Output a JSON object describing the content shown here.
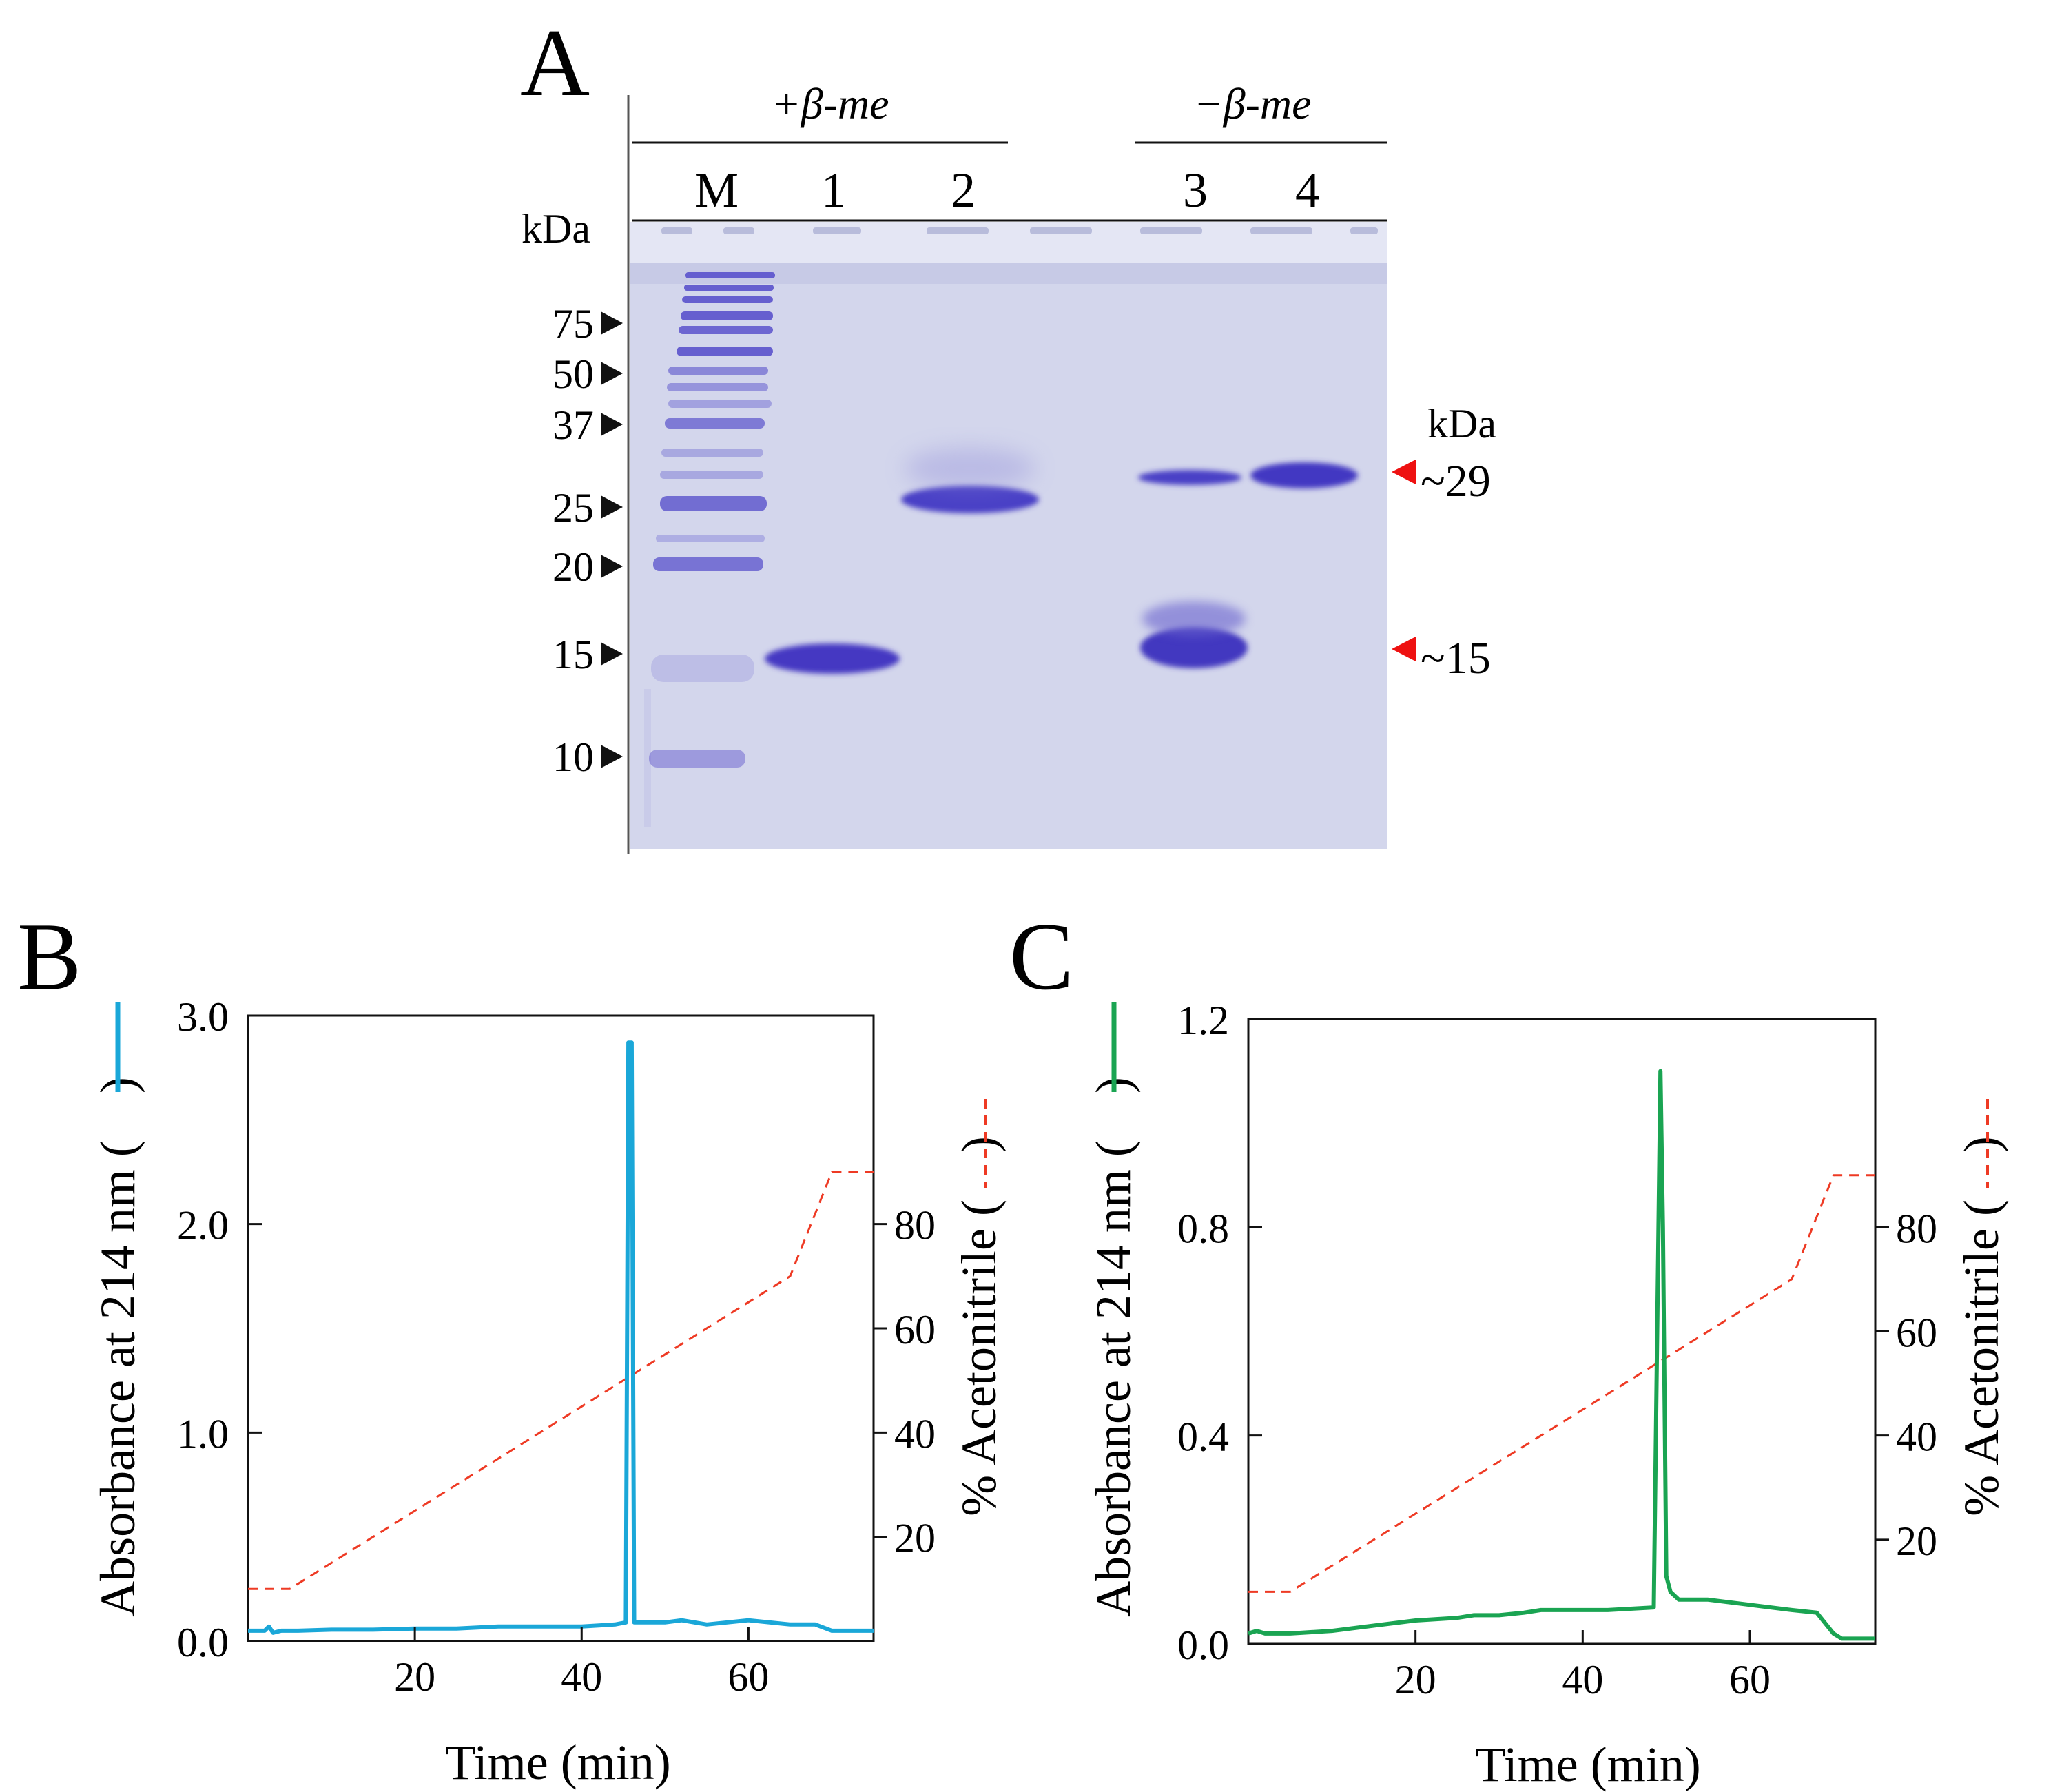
{
  "panel_a": {
    "letter": "A",
    "group_left_label": "+β-me",
    "group_right_label": "−β-me",
    "kda_left": "kDa",
    "kda_right": "kDa",
    "lane_labels": [
      "M",
      "1",
      "2",
      "3",
      "4"
    ],
    "marker_labels": [
      "75",
      "50",
      "37",
      "25",
      "20",
      "15",
      "10"
    ],
    "band_annotations": [
      "~29",
      "~15"
    ],
    "colors": {
      "gel": "#d2d5ec",
      "band": "#4a40c4",
      "arrow": "#ee1111",
      "marker_arrow": "#111111"
    }
  },
  "chart_data": [
    {
      "panel": "B",
      "type": "line",
      "xlabel": "Time (min)",
      "ylabel": "Absorbance at 214 nm (",
      "ylabel_close": ")",
      "y2label": "% Acetonitrile (",
      "y2label_close": ")",
      "xlim": [
        0,
        75
      ],
      "ylim": [
        0,
        3.0
      ],
      "y2lim": [
        0,
        120
      ],
      "xticks": [
        20,
        40,
        60
      ],
      "yticks": [
        "0.0",
        "1.0",
        "2.0",
        "3.0"
      ],
      "y2ticks": [
        20,
        40,
        60,
        80
      ],
      "series": [
        {
          "name": "Absorbance at 214 nm",
          "color": "#1aa7d8",
          "style": "solid",
          "x": [
            0,
            2,
            2.5,
            3,
            4,
            6,
            10,
            15,
            20,
            25,
            30,
            35,
            40,
            44,
            45.3,
            45.6,
            46.0,
            46.3,
            47,
            50,
            52,
            55,
            60,
            65,
            68,
            70,
            75
          ],
          "y": [
            0.05,
            0.05,
            0.07,
            0.04,
            0.05,
            0.05,
            0.055,
            0.055,
            0.06,
            0.06,
            0.07,
            0.07,
            0.07,
            0.08,
            0.09,
            2.87,
            2.87,
            0.09,
            0.09,
            0.09,
            0.1,
            0.08,
            0.1,
            0.08,
            0.08,
            0.05,
            0.05
          ]
        },
        {
          "name": "% Acetonitrile",
          "color": "#ee3a24",
          "style": "dashed",
          "axis": "y2",
          "x": [
            0,
            5,
            65,
            70,
            75
          ],
          "y": [
            10,
            10,
            70,
            90,
            90
          ]
        }
      ]
    },
    {
      "panel": "C",
      "type": "line",
      "xlabel": "Time (min)",
      "ylabel": "Absorbance at 214 nm (",
      "ylabel_close": ")",
      "y2label": "% Acetonitrile (",
      "y2label_close": ")",
      "xlim": [
        0,
        75
      ],
      "ylim": [
        0,
        1.2
      ],
      "y2lim": [
        0,
        120
      ],
      "xticks": [
        20,
        40,
        60
      ],
      "yticks": [
        "0.0",
        "0.4",
        "0.8",
        "1.2"
      ],
      "y2ticks": [
        20,
        40,
        60,
        80
      ],
      "series": [
        {
          "name": "Absorbance at 214 nm",
          "color": "#1aa452",
          "style": "solid",
          "x": [
            0,
            1,
            2,
            5,
            10,
            15,
            20,
            25,
            27,
            30,
            33,
            35,
            40,
            43,
            48.5,
            49.3,
            49.6,
            50.0,
            50.5,
            51.5,
            55,
            60,
            65,
            68,
            70,
            71,
            75
          ],
          "y": [
            0.02,
            0.025,
            0.02,
            0.02,
            0.025,
            0.035,
            0.045,
            0.05,
            0.055,
            0.055,
            0.06,
            0.065,
            0.065,
            0.065,
            0.07,
            1.1,
            0.8,
            0.13,
            0.1,
            0.085,
            0.085,
            0.075,
            0.065,
            0.06,
            0.02,
            0.01,
            0.01
          ]
        },
        {
          "name": "% Acetonitrile",
          "color": "#ee3a24",
          "style": "dashed",
          "axis": "y2",
          "x": [
            0,
            5,
            65,
            70,
            75
          ],
          "y": [
            10,
            10,
            70,
            90,
            90
          ]
        }
      ]
    }
  ]
}
